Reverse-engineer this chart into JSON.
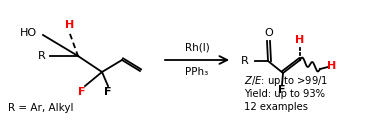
{
  "bg_color": "#ffffff",
  "line_color": "#000000",
  "red_color": "#ff0000",
  "reagent_line1": "Rh(I)",
  "reagent_line2": "PPh₃",
  "r_label": "R = Ar, Alkyl",
  "fig_width": 3.78,
  "fig_height": 1.26,
  "dpi": 100
}
